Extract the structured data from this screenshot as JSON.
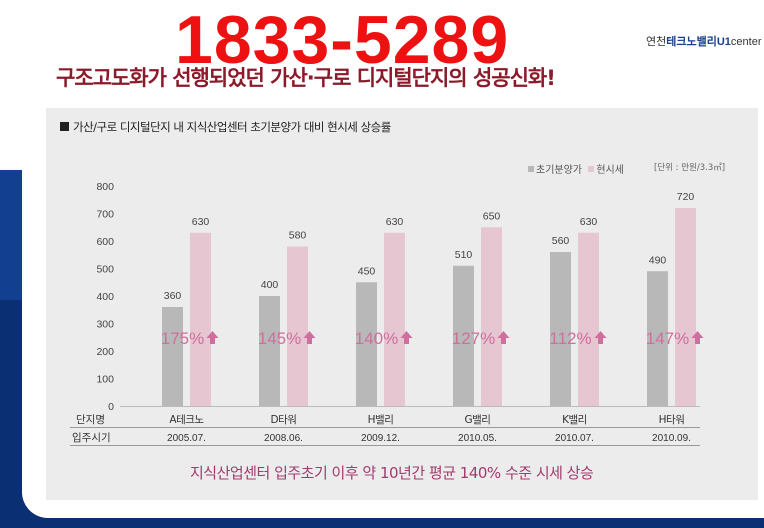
{
  "phone": "1833-5289",
  "brand": {
    "prefix": "연천",
    "name": "테크노밸리",
    "suffix": "U1",
    "tail": "center"
  },
  "headline": "구조고도화가 선행되었던 가산·구로 디지털단지의 성공신화!",
  "subtitle": "가산/구로 디지털단지 내 지식산업센터 초기분양가 대비 현시세 상승률",
  "unit": "[단위 : 만원/3.3㎡]",
  "footer": "지식산업센터 입주초기 이후 약 10년간 평균 140% 수준 시세 상승",
  "colors": {
    "initial": "#b8b8b8",
    "current": "#e6c6d1",
    "pct": "#d06e9e",
    "headline": "#8b1a2a",
    "phone": "#ee1111"
  },
  "chart_data": {
    "type": "bar",
    "ylim": [
      0,
      800
    ],
    "yticks": [
      0,
      100,
      200,
      300,
      400,
      500,
      600,
      700,
      800
    ],
    "row_labels": [
      "단지명",
      "입주시기"
    ],
    "categories": [
      "A테크노",
      "D타워",
      "H밸리",
      "G밸리",
      "K밸리",
      "H타워"
    ],
    "dates": [
      "2005.07.",
      "2008.06.",
      "2009.12.",
      "2010.05.",
      "2010.07.",
      "2010.09."
    ],
    "series": [
      {
        "name": "초기분양가",
        "values": [
          360,
          400,
          450,
          510,
          560,
          490
        ]
      },
      {
        "name": "현시세",
        "values": [
          630,
          580,
          630,
          650,
          630,
          720
        ]
      }
    ],
    "percent_labels": [
      "175%",
      "145%",
      "140%",
      "127%",
      "112%",
      "147%"
    ],
    "legend_position": "top-right",
    "grid": false
  }
}
